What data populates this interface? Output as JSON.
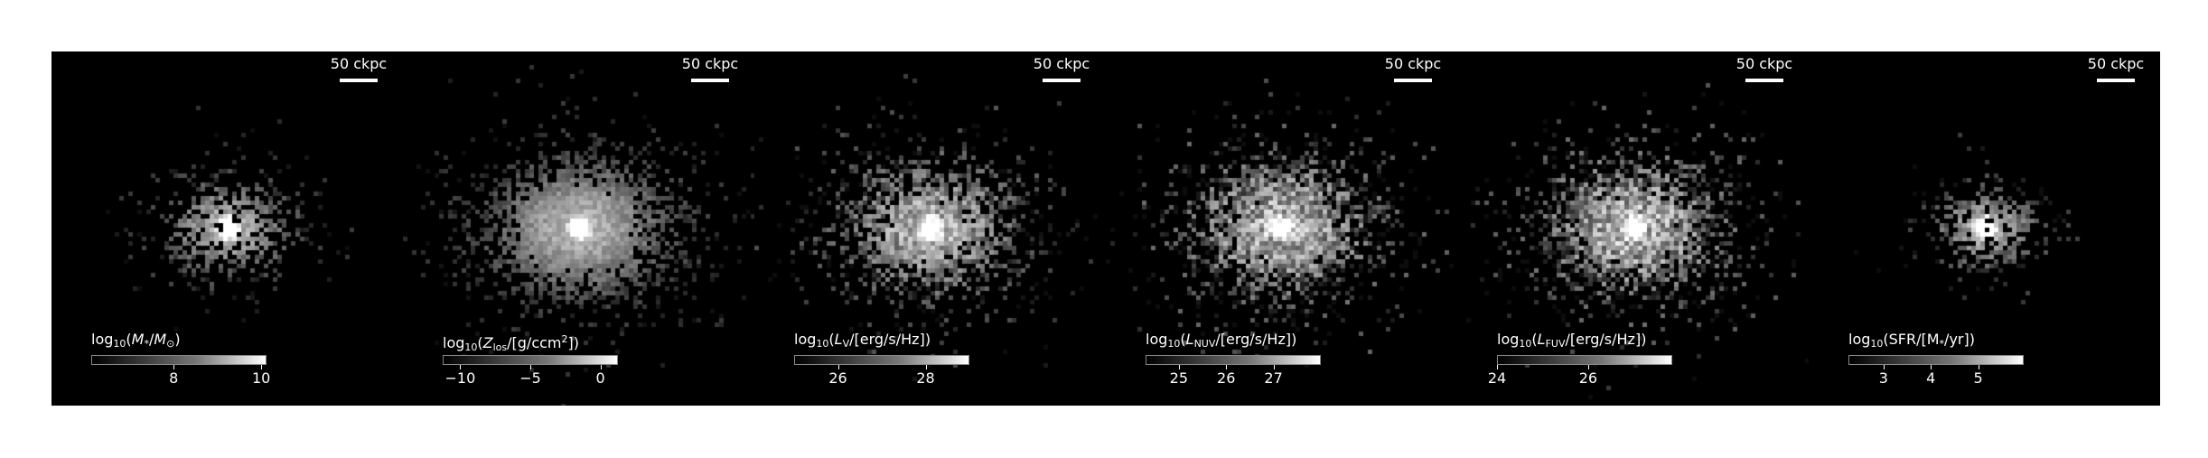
{
  "figure": {
    "panels": [
      {
        "scalebar": "50 ckpc",
        "colorbar_title_html": "log<sub>10</sub>(<i>M</i><sub>*</sub>/<i>M</i><sub>⊙</sub>)",
        "ticks": [
          {
            "label": "8",
            "frac": 0.47
          },
          {
            "label": "10",
            "frac": 0.97
          }
        ],
        "map": {
          "spread": 0.85,
          "density": 0.3,
          "core": 1.0,
          "noise": 0.25
        }
      },
      {
        "scalebar": "50 ckpc",
        "colorbar_title_html": "log<sub>10</sub>(<i>Z</i><sub>los</sub>/[g/ccm<sup>2</sup>])",
        "ticks": [
          {
            "label": "−10",
            "frac": 0.1
          },
          {
            "label": "−5",
            "frac": 0.5
          },
          {
            "label": "0",
            "frac": 0.9
          }
        ],
        "map": {
          "spread": 1.25,
          "density": 0.72,
          "core": 0.9,
          "noise": 0.2
        }
      },
      {
        "scalebar": "50 ckpc",
        "colorbar_title_html": "log<sub>10</sub>(<i>L</i><sub>V</sub>/[erg/s/Hz])",
        "ticks": [
          {
            "label": "26",
            "frac": 0.25
          },
          {
            "label": "28",
            "frac": 0.75
          }
        ],
        "map": {
          "spread": 1.15,
          "density": 0.6,
          "core": 0.95,
          "noise": 0.45
        }
      },
      {
        "scalebar": "50 ckpc",
        "colorbar_title_html": "log<sub>10</sub>(<i>L</i><sub>NUV</sub>/[erg/s/Hz])",
        "ticks": [
          {
            "label": "25",
            "frac": 0.19
          },
          {
            "label": "26",
            "frac": 0.46
          },
          {
            "label": "27",
            "frac": 0.73
          }
        ],
        "map": {
          "spread": 1.2,
          "density": 0.65,
          "core": 0.9,
          "noise": 0.55
        }
      },
      {
        "scalebar": "50 ckpc",
        "colorbar_title_html": "log<sub>10</sub>(<i>L</i><sub>FUV</sub>/[erg/s/Hz])",
        "ticks": [
          {
            "label": "24",
            "frac": 0.0
          },
          {
            "label": "26",
            "frac": 0.52
          }
        ],
        "map": {
          "spread": 1.2,
          "density": 0.65,
          "core": 0.9,
          "noise": 0.55
        }
      },
      {
        "scalebar": "50 ckpc",
        "colorbar_title_html": "log<sub>10</sub>(SFR/[M<sub>*</sub>/yr])",
        "ticks": [
          {
            "label": "3",
            "frac": 0.2
          },
          {
            "label": "4",
            "frac": 0.47
          },
          {
            "label": "5",
            "frac": 0.74
          }
        ],
        "map": {
          "spread": 0.7,
          "density": 0.32,
          "core": 1.0,
          "noise": 0.3
        }
      }
    ]
  }
}
